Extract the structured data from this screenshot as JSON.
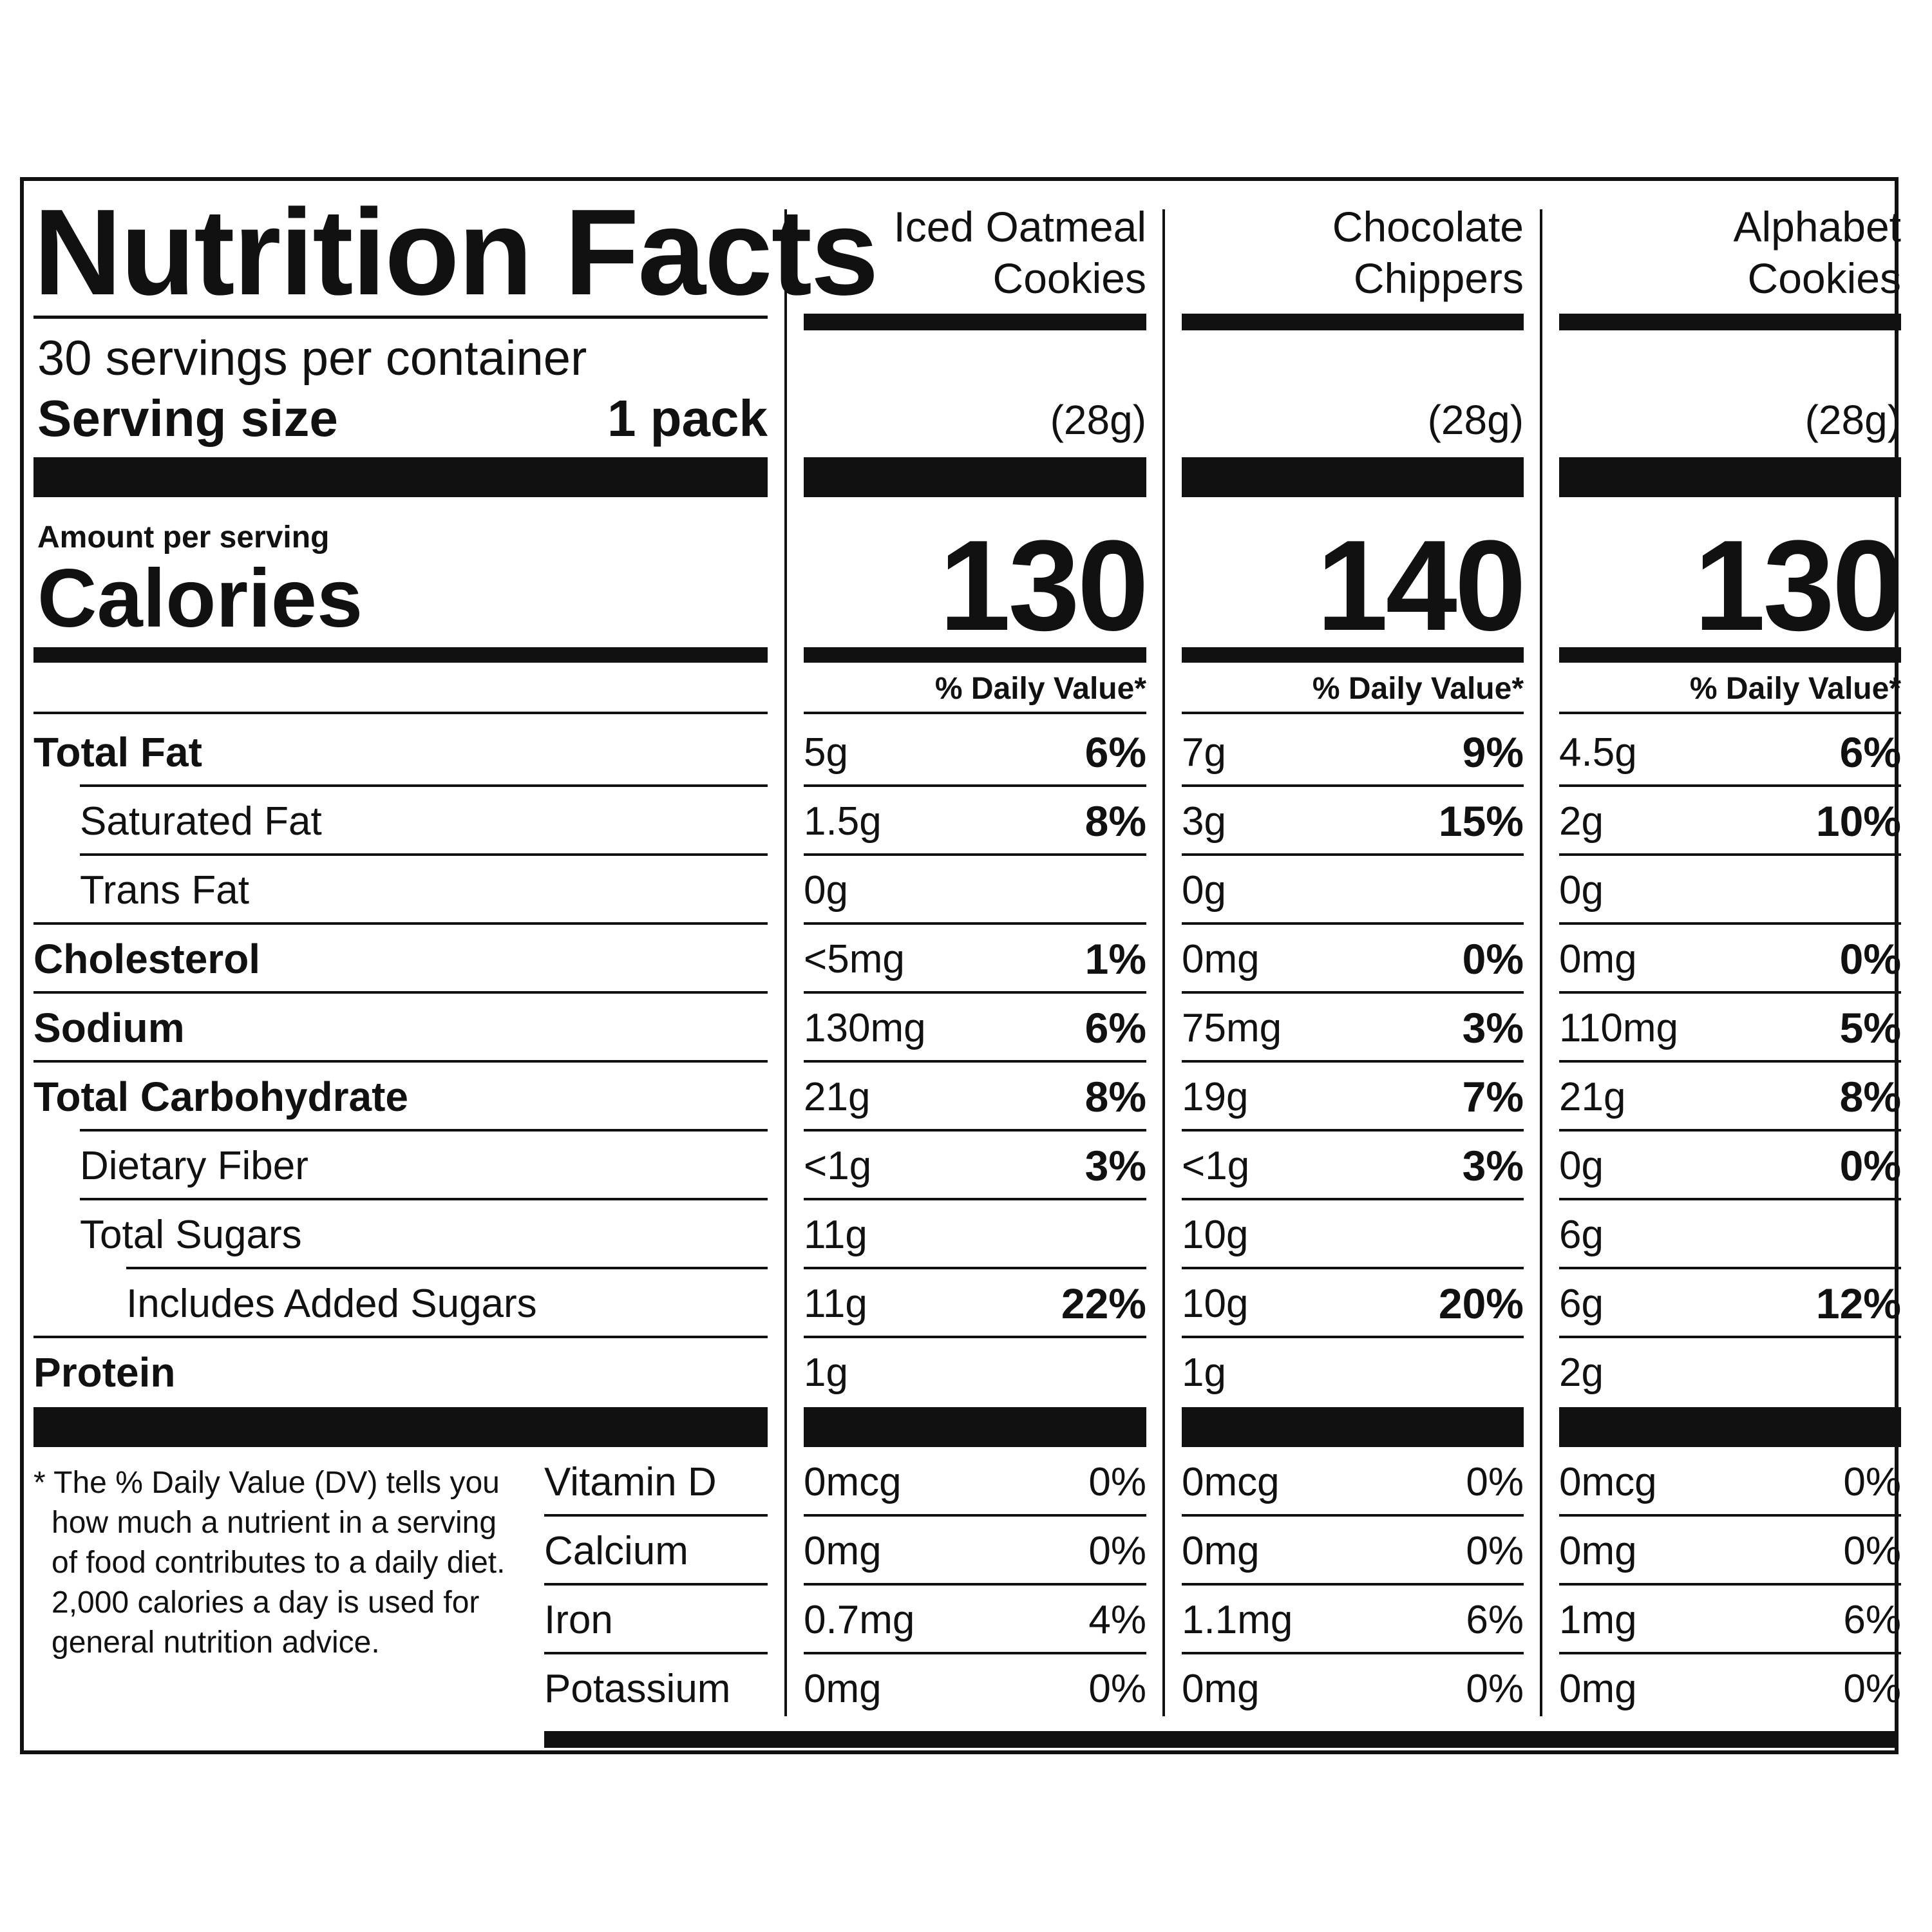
{
  "header": {
    "title": "Nutrition Facts",
    "servings_per_container": "30 servings per container",
    "serving_size_label": "Serving size",
    "serving_size_value": "1 pack",
    "amount_per_serving": "Amount per serving",
    "calories_label": "Calories",
    "daily_value_header": "% Daily Value*"
  },
  "products": [
    {
      "name_line1": "Iced Oatmeal",
      "name_line2": "Cookies",
      "serving_weight": "(28g)",
      "calories": "130"
    },
    {
      "name_line1": "Chocolate",
      "name_line2": "Chippers",
      "serving_weight": "(28g)",
      "calories": "140"
    },
    {
      "name_line1": "Alphabet",
      "name_line2": "Cookies",
      "serving_weight": "(28g)",
      "calories": "130"
    }
  ],
  "nutrients": [
    {
      "name": "Total Fat",
      "bold": true,
      "indent": 0,
      "values": [
        {
          "amount": "5g",
          "dv": "6%"
        },
        {
          "amount": "7g",
          "dv": "9%"
        },
        {
          "amount": "4.5g",
          "dv": "6%"
        }
      ]
    },
    {
      "name": "Saturated Fat",
      "bold": false,
      "indent": 1,
      "values": [
        {
          "amount": "1.5g",
          "dv": "8%"
        },
        {
          "amount": "3g",
          "dv": "15%"
        },
        {
          "amount": "2g",
          "dv": "10%"
        }
      ]
    },
    {
      "name": "Trans Fat",
      "bold": false,
      "indent": 1,
      "values": [
        {
          "amount": "0g",
          "dv": ""
        },
        {
          "amount": "0g",
          "dv": ""
        },
        {
          "amount": "0g",
          "dv": ""
        }
      ]
    },
    {
      "name": "Cholesterol",
      "bold": true,
      "indent": 0,
      "values": [
        {
          "amount": "<5mg",
          "dv": "1%"
        },
        {
          "amount": "0mg",
          "dv": "0%"
        },
        {
          "amount": "0mg",
          "dv": "0%"
        }
      ]
    },
    {
      "name": "Sodium",
      "bold": true,
      "indent": 0,
      "values": [
        {
          "amount": "130mg",
          "dv": "6%"
        },
        {
          "amount": "75mg",
          "dv": "3%"
        },
        {
          "amount": "110mg",
          "dv": "5%"
        }
      ]
    },
    {
      "name": "Total Carbohydrate",
      "bold": true,
      "indent": 0,
      "values": [
        {
          "amount": "21g",
          "dv": "8%"
        },
        {
          "amount": "19g",
          "dv": "7%"
        },
        {
          "amount": "21g",
          "dv": "8%"
        }
      ]
    },
    {
      "name": "Dietary Fiber",
      "bold": false,
      "indent": 1,
      "values": [
        {
          "amount": "<1g",
          "dv": "3%"
        },
        {
          "amount": "<1g",
          "dv": "3%"
        },
        {
          "amount": "0g",
          "dv": "0%"
        }
      ]
    },
    {
      "name": "Total Sugars",
      "bold": false,
      "indent": 1,
      "values": [
        {
          "amount": "11g",
          "dv": ""
        },
        {
          "amount": "10g",
          "dv": ""
        },
        {
          "amount": "6g",
          "dv": ""
        }
      ]
    },
    {
      "name": "Includes Added Sugars",
      "bold": false,
      "indent": 2,
      "values": [
        {
          "amount": "11g",
          "dv": "22%"
        },
        {
          "amount": "10g",
          "dv": "20%"
        },
        {
          "amount": "6g",
          "dv": "12%"
        }
      ]
    },
    {
      "name": "Protein",
      "bold": true,
      "indent": 0,
      "values": [
        {
          "amount": "1g",
          "dv": ""
        },
        {
          "amount": "1g",
          "dv": ""
        },
        {
          "amount": "2g",
          "dv": ""
        }
      ]
    }
  ],
  "vitamins": [
    {
      "name": "Vitamin D",
      "values": [
        {
          "amount": "0mcg",
          "dv": "0%"
        },
        {
          "amount": "0mcg",
          "dv": "0%"
        },
        {
          "amount": "0mcg",
          "dv": "0%"
        }
      ]
    },
    {
      "name": "Calcium",
      "values": [
        {
          "amount": "0mg",
          "dv": "0%"
        },
        {
          "amount": "0mg",
          "dv": "0%"
        },
        {
          "amount": "0mg",
          "dv": "0%"
        }
      ]
    },
    {
      "name": "Iron",
      "values": [
        {
          "amount": "0.7mg",
          "dv": "4%"
        },
        {
          "amount": "1.1mg",
          "dv": "6%"
        },
        {
          "amount": "1mg",
          "dv": "6%"
        }
      ]
    },
    {
      "name": "Potassium",
      "values": [
        {
          "amount": "0mg",
          "dv": "0%"
        },
        {
          "amount": "0mg",
          "dv": "0%"
        },
        {
          "amount": "0mg",
          "dv": "0%"
        }
      ]
    }
  ],
  "footnote": {
    "line1": "* The % Daily Value (DV) tells you",
    "line2": "how much a nutrient in a serving",
    "line3": "of food contributes to a daily diet.",
    "line4": "2,000 calories a day is used for",
    "line5": "general nutrition advice."
  }
}
